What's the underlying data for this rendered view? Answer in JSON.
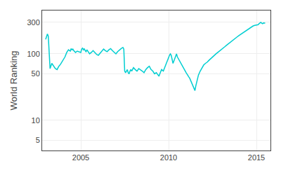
{
  "chart_data": {
    "type": "line",
    "ylabel": "World Ranking",
    "color": "#00CED1",
    "log": "y",
    "grid": true,
    "xlim": [
      2002.8,
      2015.8
    ],
    "ylim": [
      3.5,
      450
    ],
    "xticks": [
      2005,
      2010,
      2015
    ],
    "yticks": [
      5,
      10,
      50,
      100,
      300
    ],
    "x": [
      2003.0,
      2003.05,
      2003.1,
      2003.15,
      2003.25,
      2003.35,
      2003.45,
      2003.55,
      2003.65,
      2003.75,
      2003.85,
      2004.0,
      2004.1,
      2004.2,
      2004.3,
      2004.4,
      2004.45,
      2004.5,
      2004.55,
      2004.6,
      2004.7,
      2004.8,
      2004.9,
      2005.0,
      2005.05,
      2005.1,
      2005.15,
      2005.2,
      2005.25,
      2005.3,
      2005.35,
      2005.4,
      2005.5,
      2005.6,
      2005.7,
      2005.8,
      2005.9,
      2006.0,
      2006.1,
      2006.2,
      2006.3,
      2006.4,
      2006.5,
      2006.6,
      2006.7,
      2006.8,
      2006.9,
      2007.0,
      2007.1,
      2007.2,
      2007.3,
      2007.4,
      2007.45,
      2007.5,
      2007.55,
      2007.6,
      2007.65,
      2007.7,
      2007.75,
      2007.8,
      2007.85,
      2007.9,
      2007.95,
      2008.0,
      2008.1,
      2008.2,
      2008.3,
      2008.4,
      2008.5,
      2008.6,
      2008.7,
      2008.8,
      2008.9,
      2009.0,
      2009.1,
      2009.2,
      2009.3,
      2009.4,
      2009.45,
      2009.5,
      2009.55,
      2009.6,
      2009.7,
      2009.75,
      2009.8,
      2009.9,
      2010.0,
      2010.05,
      2010.1,
      2010.15,
      2010.2,
      2010.25,
      2010.3,
      2010.35,
      2010.4,
      2010.45,
      2010.5,
      2010.6,
      2010.7,
      2010.8,
      2010.85,
      2010.9,
      2010.95,
      2011.0,
      2011.05,
      2011.1,
      2011.15,
      2011.2,
      2011.25,
      2011.3,
      2011.35,
      2011.4,
      2011.45,
      2011.5,
      2011.55,
      2011.6,
      2011.65,
      2011.7,
      2011.8,
      2011.9,
      2012.0,
      2012.1,
      2012.2,
      2012.3,
      2012.4,
      2012.5,
      2012.6,
      2012.7,
      2012.8,
      2012.9,
      2013.0,
      2013.1,
      2013.2,
      2013.3,
      2013.4,
      2013.5,
      2013.6,
      2013.7,
      2013.8,
      2013.9,
      2014.0,
      2014.1,
      2014.2,
      2014.3,
      2014.4,
      2014.5,
      2014.6,
      2014.7,
      2014.8,
      2014.9,
      2015.0,
      2015.1,
      2015.15,
      2015.2,
      2015.25,
      2015.3,
      2015.35,
      2015.4,
      2015.5
    ],
    "values": [
      165,
      180,
      200,
      185,
      60,
      72,
      65,
      60,
      58,
      65,
      70,
      80,
      90,
      105,
      115,
      110,
      120,
      115,
      118,
      112,
      105,
      110,
      108,
      105,
      118,
      122,
      115,
      120,
      112,
      108,
      115,
      110,
      100,
      105,
      112,
      105,
      98,
      95,
      102,
      110,
      118,
      112,
      108,
      115,
      120,
      112,
      105,
      100,
      108,
      115,
      120,
      125,
      118,
      55,
      52,
      55,
      58,
      52,
      50,
      55,
      58,
      55,
      58,
      62,
      58,
      55,
      60,
      58,
      55,
      52,
      58,
      62,
      65,
      58,
      55,
      50,
      52,
      48,
      46,
      50,
      55,
      58,
      55,
      60,
      65,
      75,
      88,
      95,
      100,
      95,
      80,
      72,
      78,
      85,
      95,
      100,
      90,
      80,
      72,
      65,
      60,
      58,
      55,
      52,
      50,
      48,
      45,
      43,
      40,
      38,
      35,
      33,
      30,
      28,
      33,
      38,
      42,
      48,
      55,
      62,
      68,
      72,
      75,
      80,
      85,
      90,
      95,
      100,
      105,
      110,
      115,
      120,
      128,
      135,
      142,
      150,
      158,
      165,
      172,
      180,
      188,
      196,
      205,
      215,
      222,
      230,
      240,
      252,
      262,
      268,
      272,
      275,
      285,
      292,
      298,
      290,
      285,
      292,
      290
    ]
  }
}
